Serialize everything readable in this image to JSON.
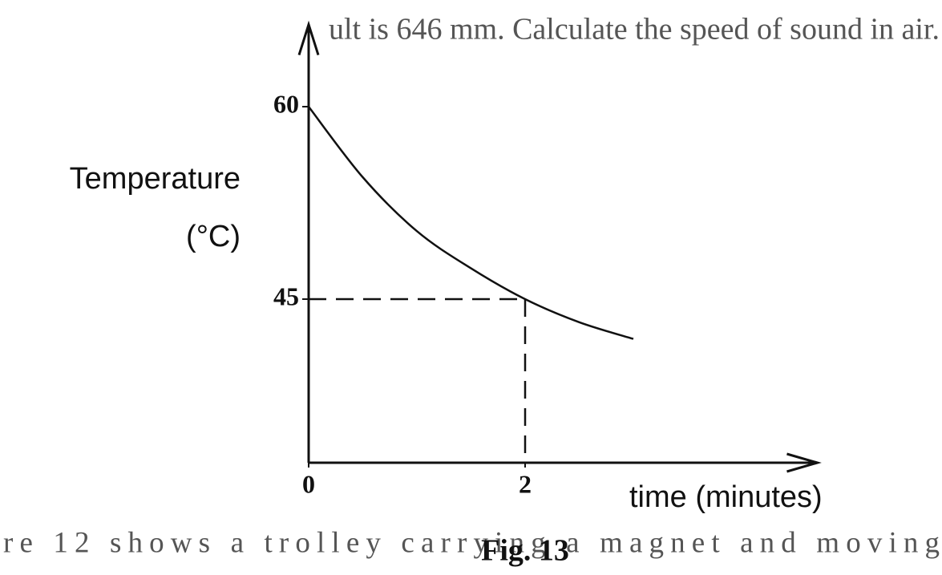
{
  "chart_data": {
    "type": "line",
    "title": "Fig. 13",
    "ylabel": [
      "Temperature",
      "(°C)"
    ],
    "xlabel": "time (minutes)",
    "x": [
      0,
      0.5,
      1,
      1.5,
      2,
      2.5,
      3
    ],
    "series": [
      {
        "color": "#111111",
        "values": [
          60,
          54.5,
          50.3,
          47.4,
          45,
          43.2,
          41.9
        ]
      }
    ],
    "xlim": [
      0,
      4.7
    ],
    "xticks": [
      0,
      2
    ],
    "ylim": [
      32.25,
      66.4
    ],
    "yticks": [
      60,
      45
    ],
    "guide_point": 4
  },
  "page_text": {
    "top": "ult is 646 mm. Calculate the speed of sound in air.",
    "bottom": "re 12 shows a trolley carrying a magnet and moving"
  }
}
